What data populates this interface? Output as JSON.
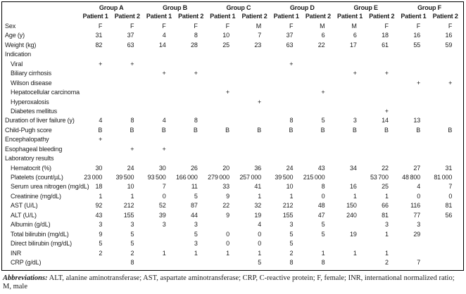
{
  "table": {
    "header": {
      "groups": [
        "Group A",
        "Group B",
        "Group C",
        "Group D",
        "Group E",
        "Group F"
      ],
      "patient_columns": [
        "Patient 1",
        "Patient 2",
        "Patient 1",
        "Patient 2",
        "Patient 1",
        "Patient 2",
        "Patient 1",
        "Patient 2",
        "Patient 1",
        "Patient 2",
        "Patient 1",
        "Patient 2"
      ]
    },
    "rows": [
      {
        "label": "Sex",
        "indent": false,
        "values": [
          "F",
          "F",
          "F",
          "F",
          "F",
          "M",
          "F",
          "M",
          "M",
          "F",
          "F",
          "F"
        ]
      },
      {
        "label": "Age (y)",
        "indent": false,
        "values": [
          "31",
          "37",
          "4",
          "8",
          "10",
          "7",
          "37",
          "6",
          "6",
          "18",
          "16",
          "16"
        ]
      },
      {
        "label": "Weight (kg)",
        "indent": false,
        "values": [
          "82",
          "63",
          "14",
          "28",
          "25",
          "23",
          "63",
          "22",
          "17",
          "61",
          "55",
          "59"
        ]
      },
      {
        "label": "Indication",
        "indent": false,
        "values": [
          "",
          "",
          "",
          "",
          "",
          "",
          "",
          "",
          "",
          "",
          "",
          ""
        ]
      },
      {
        "label": "Viral",
        "indent": true,
        "values": [
          "+",
          "+",
          "",
          "",
          "",
          "",
          "+",
          "",
          "",
          "",
          "",
          ""
        ]
      },
      {
        "label": "Biliary cirrhosis",
        "indent": true,
        "values": [
          "",
          "",
          "+",
          "+",
          "",
          "",
          "",
          "",
          "+",
          "+",
          "",
          ""
        ]
      },
      {
        "label": "Wilson disease",
        "indent": true,
        "values": [
          "",
          "",
          "",
          "",
          "",
          "",
          "",
          "",
          "",
          "",
          "+",
          "+"
        ]
      },
      {
        "label": "Hepatocellular carcinoma",
        "indent": true,
        "values": [
          "",
          "",
          "",
          "",
          "+",
          "",
          "",
          "+",
          "",
          "",
          "",
          ""
        ]
      },
      {
        "label": "Hyperoxalosis",
        "indent": true,
        "values": [
          "",
          "",
          "",
          "",
          "",
          "+",
          "",
          "",
          "",
          "",
          "",
          ""
        ]
      },
      {
        "label": "Diabetes mellitus",
        "indent": true,
        "values": [
          "",
          "",
          "",
          "",
          "",
          "",
          "",
          "",
          "",
          "+",
          "",
          ""
        ]
      },
      {
        "label": "Duration of liver failure (y)",
        "indent": false,
        "values": [
          "4",
          "8",
          "4",
          "8",
          "",
          "",
          "8",
          "5",
          "3",
          "14",
          "13",
          ""
        ]
      },
      {
        "label": "Child-Pugh score",
        "indent": false,
        "values": [
          "B",
          "B",
          "B",
          "B",
          "B",
          "B",
          "B",
          "B",
          "B",
          "B",
          "B",
          "B"
        ]
      },
      {
        "label": "Encephalopathy",
        "indent": false,
        "values": [
          "+",
          "",
          "",
          "",
          "",
          "",
          "",
          "",
          "",
          "",
          "",
          ""
        ]
      },
      {
        "label": "Esophageal bleeding",
        "indent": false,
        "values": [
          "",
          "+",
          "+",
          "",
          "",
          "",
          "",
          "",
          "",
          "",
          "",
          ""
        ]
      },
      {
        "label": "Laboratory results",
        "indent": false,
        "values": [
          "",
          "",
          "",
          "",
          "",
          "",
          "",
          "",
          "",
          "",
          "",
          ""
        ]
      },
      {
        "label": "Hematocrit (%)",
        "indent": true,
        "values": [
          "30",
          "24",
          "30",
          "26",
          "20",
          "36",
          "24",
          "43",
          "34",
          "22",
          "27",
          "31"
        ]
      },
      {
        "label": "Platelets (count/µL)",
        "indent": true,
        "values": [
          "23 000",
          "39 500",
          "93 500",
          "166 000",
          "279 000",
          "257 000",
          "39 500",
          "215 000",
          "",
          "53 700",
          "48 800",
          "81 000"
        ]
      },
      {
        "label": "Serum urea nitrogen (mg/dL)",
        "indent": true,
        "values": [
          "18",
          "10",
          "7",
          "11",
          "33",
          "41",
          "10",
          "8",
          "16",
          "25",
          "4",
          "7"
        ]
      },
      {
        "label": "Creatinine (mg/dL)",
        "indent": true,
        "values": [
          "1",
          "1",
          "0",
          "5",
          "9",
          "1",
          "1",
          "0",
          "1",
          "1",
          "0",
          "0"
        ]
      },
      {
        "label": "AST (U/L)",
        "indent": true,
        "values": [
          "92",
          "212",
          "52",
          "87",
          "22",
          "32",
          "212",
          "48",
          "150",
          "66",
          "116",
          "81"
        ]
      },
      {
        "label": "ALT (U/L)",
        "indent": true,
        "values": [
          "43",
          "155",
          "39",
          "44",
          "9",
          "19",
          "155",
          "47",
          "240",
          "81",
          "77",
          "56"
        ]
      },
      {
        "label": "Albumin (g/dL)",
        "indent": true,
        "values": [
          "3",
          "3",
          "3",
          "3",
          "",
          "4",
          "3",
          "5",
          "",
          "3",
          "3",
          ""
        ]
      },
      {
        "label": "Total bilirubin (mg/dL)",
        "indent": true,
        "values": [
          "9",
          "5",
          "",
          "5",
          "0",
          "0",
          "5",
          "5",
          "19",
          "1",
          "29",
          ""
        ]
      },
      {
        "label": "Direct bilirubin (mg/dL)",
        "indent": true,
        "values": [
          "5",
          "5",
          "",
          "3",
          "0",
          "0",
          "5",
          "",
          "",
          "",
          "",
          ""
        ]
      },
      {
        "label": "INR",
        "indent": true,
        "values": [
          "2",
          "2",
          "1",
          "1",
          "1",
          "1",
          "2",
          "1",
          "1",
          "1",
          "",
          ""
        ]
      },
      {
        "label": "CRP (g/dL)",
        "indent": true,
        "values": [
          "",
          "8",
          "",
          "",
          "",
          "5",
          "8",
          "8",
          "",
          "2",
          "7",
          ""
        ]
      }
    ]
  },
  "footnote": {
    "lead": "Abbreviations:",
    "text": " ALT, alanine aminotransferase; AST, aspartate aminotransferase; CRP, C-reactive protein; F, female; INR, international normalized ratio; M, male"
  },
  "colors": {
    "text": "#1a1a1a",
    "border": "#000000",
    "background": "#ffffff"
  }
}
